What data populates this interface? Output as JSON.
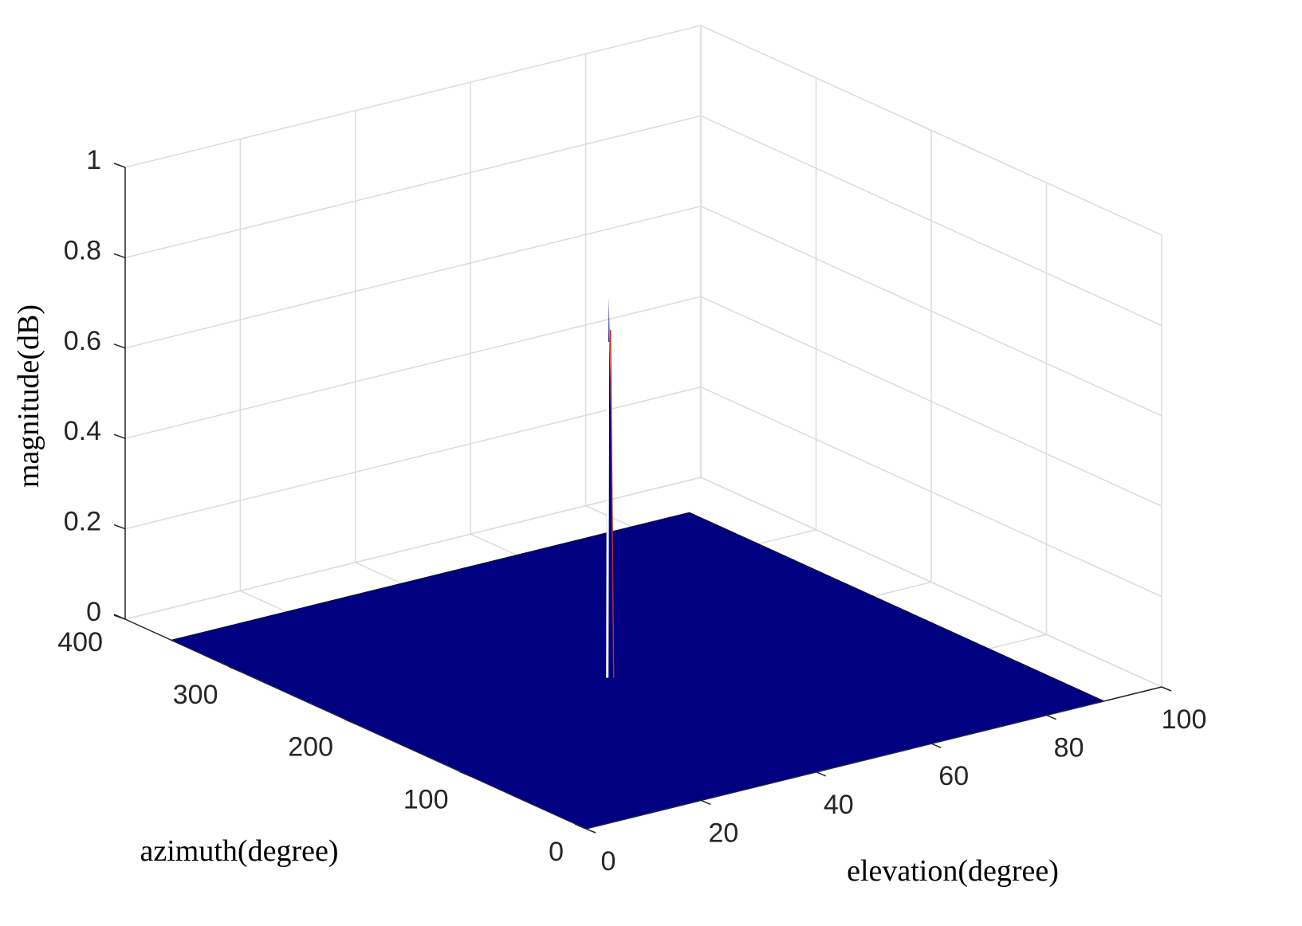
{
  "chart_data": {
    "type": "surface",
    "title": "",
    "xlabel": "elevation(degree)",
    "ylabel": "azimuth(degree)",
    "zlabel": "magnitude(dB)",
    "x_axis": {
      "range": [
        0,
        100
      ],
      "ticks": [
        "0",
        "20",
        "40",
        "60",
        "80",
        "100"
      ]
    },
    "y_axis": {
      "range": [
        0,
        400
      ],
      "ticks": [
        "0",
        "100",
        "200",
        "300",
        "400"
      ]
    },
    "z_axis": {
      "range": [
        0,
        1
      ],
      "ticks": [
        "0",
        "0.2",
        "0.4",
        "0.6",
        "0.8",
        "1"
      ]
    },
    "grid": true,
    "surface": {
      "x_extent": [
        0,
        90
      ],
      "y_extent": [
        0,
        360
      ],
      "base_value": 0,
      "peak": {
        "x": 40,
        "y": 180,
        "z": 0.84
      }
    },
    "colors": {
      "surface": "#000080",
      "peak_face": "#000080",
      "peak_edge": "#ffffff",
      "peak_highlight": "#b03030"
    }
  }
}
